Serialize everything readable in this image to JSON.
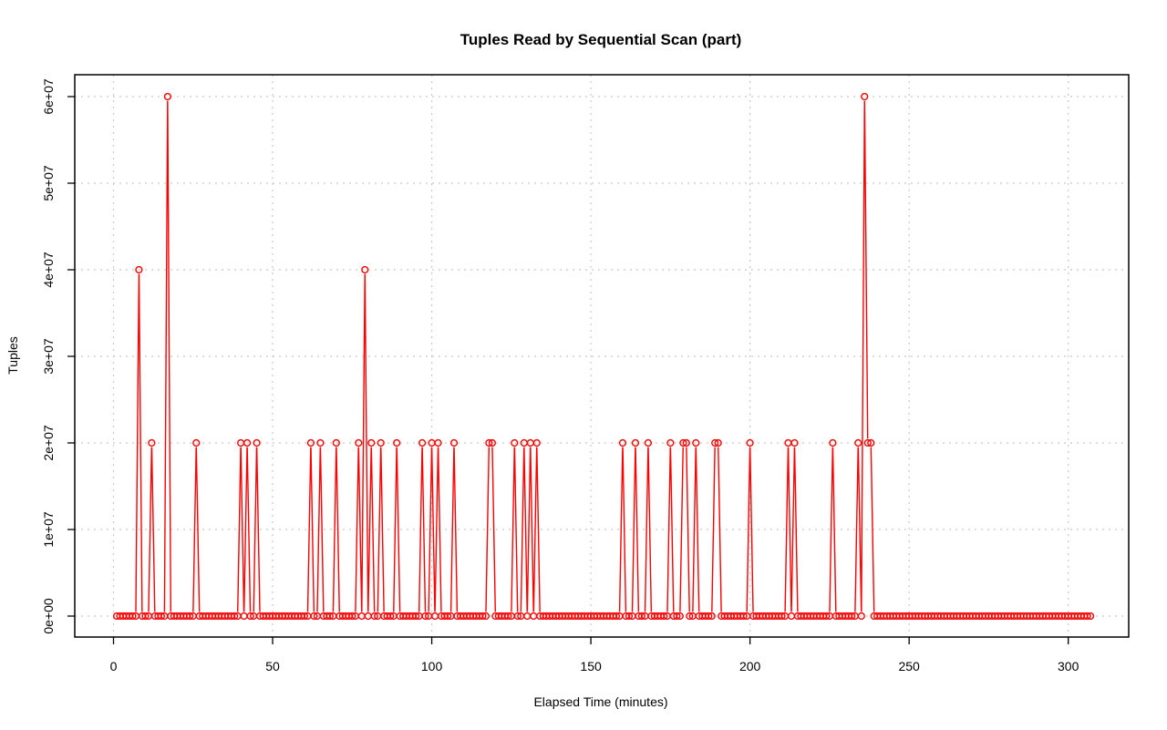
{
  "chart_data": {
    "type": "line",
    "title": "Tuples Read by Sequential Scan (part)",
    "xlabel": "Elapsed Time (minutes)",
    "ylabel": "Tuples",
    "xlim": [
      0,
      307
    ],
    "ylim": [
      0,
      60000000
    ],
    "x_ticks": [
      0,
      50,
      100,
      150,
      200,
      250,
      300
    ],
    "x_tick_labels": [
      "0",
      "50",
      "100",
      "150",
      "200",
      "250",
      "300"
    ],
    "y_ticks": [
      0,
      10000000,
      20000000,
      30000000,
      40000000,
      50000000,
      60000000
    ],
    "y_tick_labels": [
      "0e+00",
      "1e+07",
      "2e+07",
      "3e+07",
      "4e+07",
      "5e+07",
      "6e+07"
    ],
    "grid": true,
    "series_color": "#ff0000",
    "x_start": 1,
    "x_end": 307,
    "x_step": 1,
    "default_y": 0,
    "nonzero_points": [
      [
        8,
        40000000
      ],
      [
        12,
        20000000
      ],
      [
        17,
        60000000
      ],
      [
        26,
        20000000
      ],
      [
        40,
        20000000
      ],
      [
        42,
        20000000
      ],
      [
        45,
        20000000
      ],
      [
        62,
        20000000
      ],
      [
        65,
        20000000
      ],
      [
        70,
        20000000
      ],
      [
        77,
        20000000
      ],
      [
        79,
        40000000
      ],
      [
        81,
        20000000
      ],
      [
        84,
        20000000
      ],
      [
        89,
        20000000
      ],
      [
        97,
        20000000
      ],
      [
        100,
        20000000
      ],
      [
        102,
        20000000
      ],
      [
        107,
        20000000
      ],
      [
        118,
        20000000
      ],
      [
        119,
        20000000
      ],
      [
        126,
        20000000
      ],
      [
        129,
        20000000
      ],
      [
        131,
        20000000
      ],
      [
        133,
        20000000
      ],
      [
        160,
        20000000
      ],
      [
        164,
        20000000
      ],
      [
        168,
        20000000
      ],
      [
        175,
        20000000
      ],
      [
        179,
        20000000
      ],
      [
        180,
        20000000
      ],
      [
        183,
        20000000
      ],
      [
        189,
        20000000
      ],
      [
        190,
        20000000
      ],
      [
        200,
        20000000
      ],
      [
        212,
        20000000
      ],
      [
        214,
        20000000
      ],
      [
        226,
        20000000
      ],
      [
        234,
        20000000
      ],
      [
        236,
        60000000
      ],
      [
        237,
        20000000
      ],
      [
        238,
        20000000
      ]
    ]
  }
}
